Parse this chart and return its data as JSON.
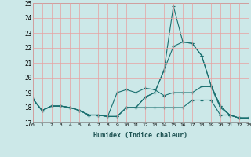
{
  "xlabel": "Humidex (Indice chaleur)",
  "bg_color": "#cce8e8",
  "grid_color": "#e8a0a0",
  "line_color": "#1a7070",
  "xlim": [
    0,
    23
  ],
  "ylim": [
    17,
    25
  ],
  "yticks": [
    17,
    18,
    19,
    20,
    21,
    22,
    23,
    24,
    25
  ],
  "xticks": [
    0,
    1,
    2,
    3,
    4,
    5,
    6,
    7,
    8,
    9,
    10,
    11,
    12,
    13,
    14,
    15,
    16,
    17,
    18,
    19,
    20,
    21,
    22,
    23
  ],
  "series": [
    [
      18.6,
      17.8,
      18.1,
      18.1,
      18.0,
      17.8,
      17.5,
      17.5,
      17.4,
      17.4,
      18.0,
      18.0,
      18.7,
      19.0,
      20.5,
      24.8,
      22.4,
      22.3,
      21.5,
      19.5,
      18.1,
      17.5,
      17.3,
      17.3
    ],
    [
      18.6,
      17.8,
      18.1,
      18.1,
      18.0,
      17.8,
      17.5,
      17.5,
      17.4,
      17.4,
      18.0,
      18.0,
      18.7,
      19.0,
      20.5,
      22.1,
      22.4,
      22.3,
      21.5,
      19.5,
      18.1,
      17.5,
      17.3,
      17.3
    ],
    [
      18.6,
      17.8,
      18.1,
      18.1,
      18.0,
      17.8,
      17.5,
      17.5,
      17.4,
      19.0,
      19.2,
      19.0,
      19.3,
      19.2,
      18.8,
      19.0,
      19.0,
      19.0,
      19.4,
      19.4,
      18.0,
      17.5,
      17.3,
      17.3
    ],
    [
      18.6,
      17.8,
      18.1,
      18.1,
      18.0,
      17.8,
      17.5,
      17.5,
      17.4,
      17.4,
      18.0,
      18.0,
      18.0,
      18.0,
      18.0,
      18.0,
      18.0,
      18.5,
      18.5,
      18.5,
      17.5,
      17.5,
      17.3,
      17.3
    ]
  ]
}
